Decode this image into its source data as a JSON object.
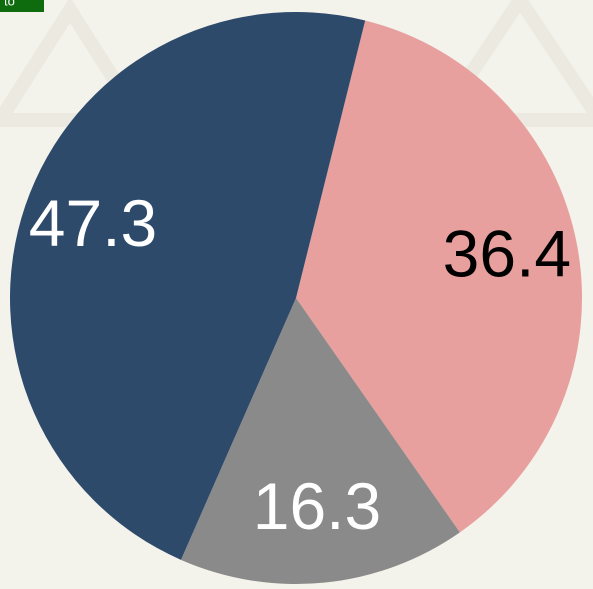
{
  "badge": "to",
  "chart_data": {
    "type": "pie",
    "categories": [
      null,
      null,
      null
    ],
    "values": [
      36.4,
      16.3,
      47.3
    ],
    "colors": [
      "#e8a09e",
      "#8a8a8a",
      "#2d4a6b"
    ]
  }
}
